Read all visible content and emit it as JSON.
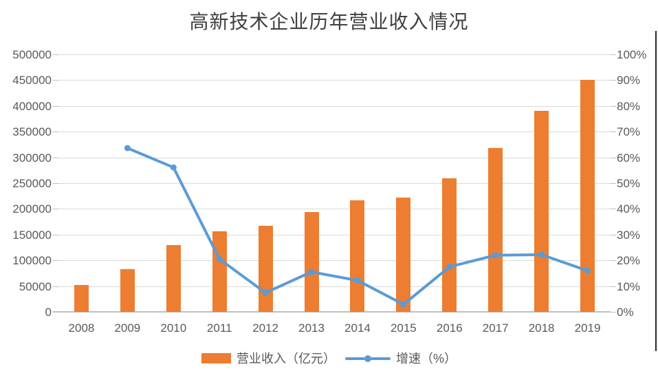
{
  "title": "高新技术企业历年营业收入情况",
  "legend": {
    "bar_label": "营业收入（亿元）",
    "line_label": "增速（%）"
  },
  "colors": {
    "bar": "#ed7d31",
    "line": "#5b9bd5",
    "gridline": "#d9d9d9",
    "axis_line": "#bfbfbf",
    "axis_text": "#595959",
    "title_text": "#3f3f3f",
    "edge_line": "#262626"
  },
  "chart_data": {
    "type": "bar",
    "subtype": "combo-bar-line-dual-axis",
    "title": "高新技术企业历年营业收入情况",
    "categories": [
      "2008",
      "2009",
      "2010",
      "2011",
      "2012",
      "2013",
      "2014",
      "2015",
      "2016",
      "2017",
      "2018",
      "2019"
    ],
    "series": [
      {
        "name": "营业收入（亿元）",
        "type": "bar",
        "axis": "left",
        "color": "#ed7d31",
        "values": [
          52000,
          83000,
          130000,
          156000,
          167000,
          194000,
          216000,
          222000,
          260000,
          318000,
          390000,
          450000
        ]
      },
      {
        "name": "增速（%）",
        "type": "line",
        "axis": "right",
        "color": "#5b9bd5",
        "values": [
          null,
          63.6,
          56.1,
          20.5,
          7.4,
          15.5,
          12.2,
          2.9,
          17.5,
          22.0,
          22.2,
          16.0
        ]
      }
    ],
    "left_axis": {
      "min": 0,
      "max": 500000,
      "step": 50000,
      "tick_labels": [
        "0",
        "50000",
        "100000",
        "150000",
        "200000",
        "250000",
        "300000",
        "350000",
        "400000",
        "450000",
        "500000"
      ]
    },
    "right_axis": {
      "min": 0,
      "max": 100,
      "step": 10,
      "tick_labels": [
        "0%",
        "10%",
        "20%",
        "30%",
        "40%",
        "50%",
        "60%",
        "70%",
        "80%",
        "90%",
        "100%"
      ]
    },
    "grid": true,
    "legend_position": "bottom"
  }
}
